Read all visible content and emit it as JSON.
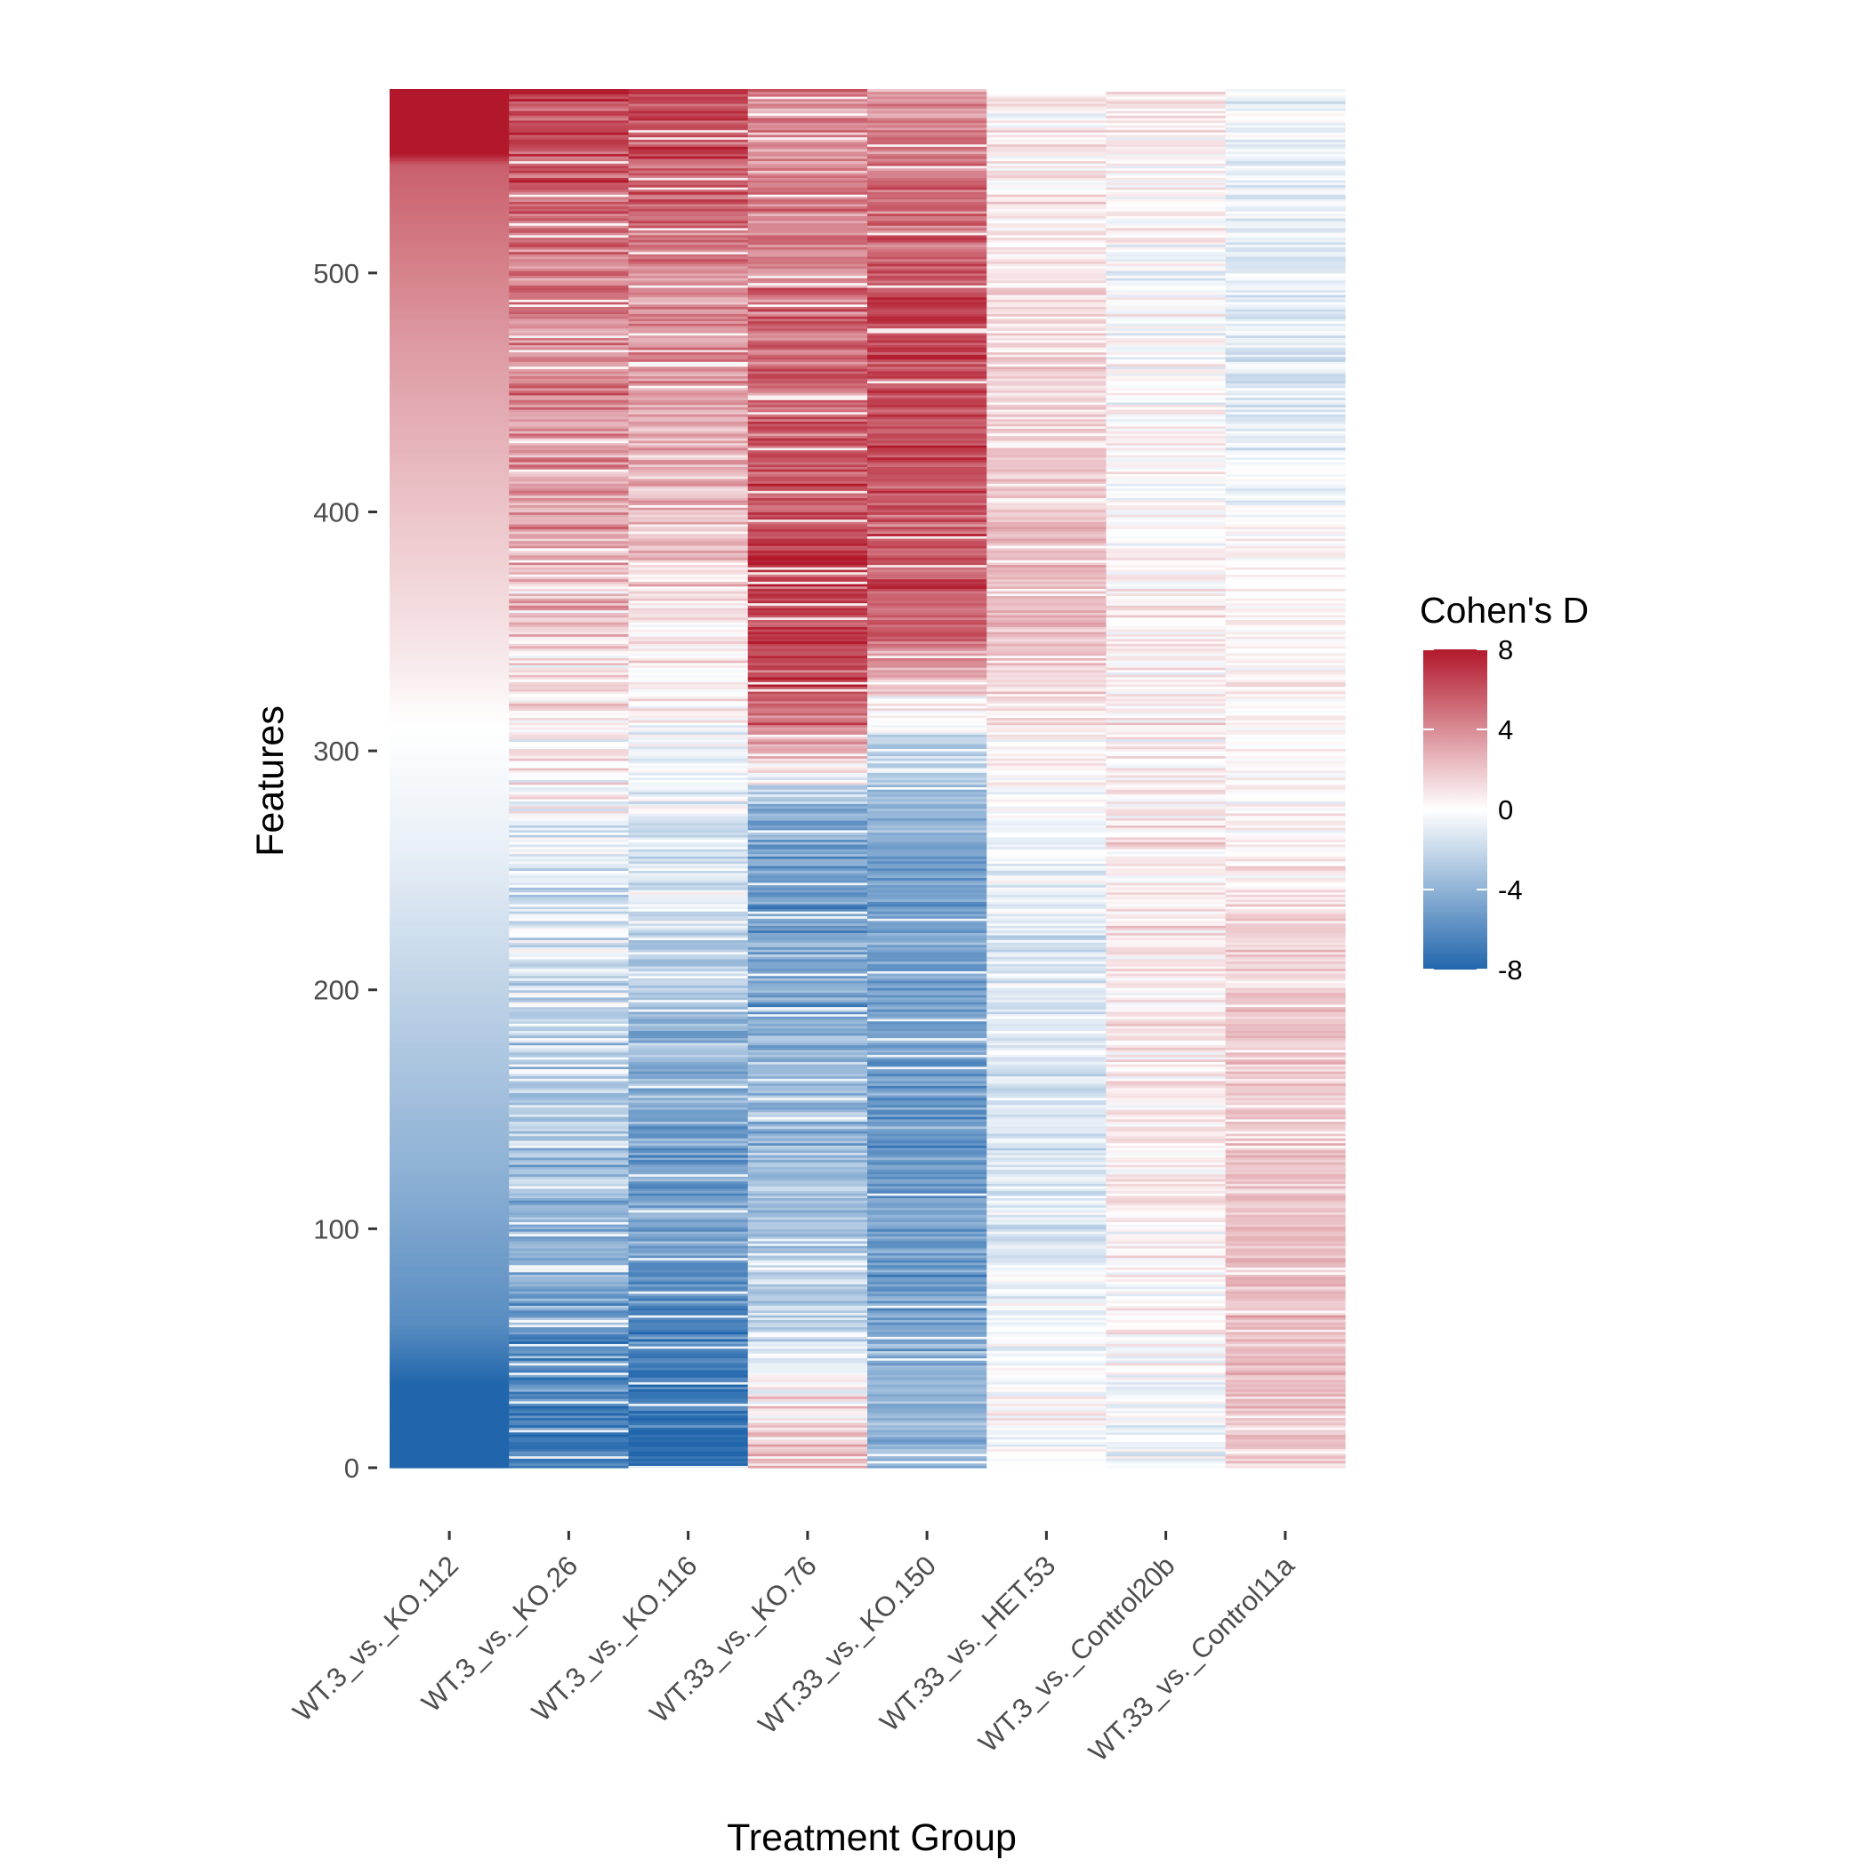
{
  "chart_data": {
    "type": "heatmap",
    "title": "",
    "xlabel": "Treatment Group",
    "ylabel": "Features",
    "categories": [
      "WT.3_vs._KO.112",
      "WT.3_vs._KO.26",
      "WT.3_vs._KO.116",
      "WT.33_vs._KO.76",
      "WT.33_vs._KO.150",
      "WT.33_vs._HET.53",
      "WT.3_vs._Control20b",
      "WT.33_vs._Control11a"
    ],
    "y_ticks": [
      0,
      100,
      200,
      300,
      400,
      500
    ],
    "y_tick_labels": [
      "0",
      "100",
      "200",
      "300",
      "400",
      "500"
    ],
    "ylim": [
      0,
      577
    ],
    "n_features": 577,
    "color_scale": {
      "title": "Cohen's D",
      "range": [
        -8,
        8
      ],
      "breaks": [
        8,
        4,
        0,
        -4,
        -8
      ],
      "break_labels": [
        "8",
        "4",
        "0",
        "-4",
        "-8"
      ],
      "low_color": "#2166ac",
      "mid_color": "#ffffff",
      "high_color": "#b2182b"
    },
    "column_profiles": [
      {
        "name": "WT.3_vs._KO.112",
        "profile": [
          [
            0,
            -8.0
          ],
          [
            35,
            -8.0
          ],
          [
            60,
            -6.0
          ],
          [
            120,
            -4.2
          ],
          [
            200,
            -2.3
          ],
          [
            260,
            -0.8
          ],
          [
            310,
            0.0
          ],
          [
            340,
            0.8
          ],
          [
            400,
            2.0
          ],
          [
            470,
            3.5
          ],
          [
            545,
            5.5
          ],
          [
            550,
            8.0
          ],
          [
            577,
            8.0
          ]
        ],
        "noise": 0.0,
        "seed": 11
      },
      {
        "name": "WT.3_vs._KO.26",
        "profile": [
          [
            0,
            -6.5
          ],
          [
            30,
            -6.5
          ],
          [
            70,
            -4.5
          ],
          [
            130,
            -3.2
          ],
          [
            200,
            -2.0
          ],
          [
            260,
            -0.8
          ],
          [
            310,
            0.8
          ],
          [
            400,
            3.0
          ],
          [
            480,
            4.0
          ],
          [
            550,
            6.0
          ],
          [
            577,
            6.5
          ]
        ],
        "noise": 1.6,
        "seed": 23
      },
      {
        "name": "WT.3_vs._KO.116",
        "profile": [
          [
            0,
            -7.5
          ],
          [
            60,
            -6.5
          ],
          [
            100,
            -5.0
          ],
          [
            180,
            -4.2
          ],
          [
            220,
            -2.0
          ],
          [
            300,
            -0.3
          ],
          [
            350,
            1.2
          ],
          [
            420,
            2.5
          ],
          [
            480,
            4.0
          ],
          [
            550,
            6.0
          ],
          [
            577,
            6.5
          ]
        ],
        "noise": 1.4,
        "seed": 37
      },
      {
        "name": "WT.33_vs._KO.76",
        "profile": [
          [
            0,
            2.0
          ],
          [
            30,
            1.0
          ],
          [
            60,
            -2.0
          ],
          [
            150,
            -4.0
          ],
          [
            250,
            -5.0
          ],
          [
            275,
            -4.5
          ],
          [
            300,
            3.0
          ],
          [
            330,
            6.5
          ],
          [
            350,
            6.5
          ],
          [
            400,
            6.0
          ],
          [
            440,
            5.5
          ],
          [
            500,
            4.5
          ],
          [
            577,
            4.0
          ]
        ],
        "noise": 1.5,
        "seed": 41
      },
      {
        "name": "WT.33_vs._KO.150",
        "profile": [
          [
            0,
            -3.0
          ],
          [
            65,
            -5.0
          ],
          [
            150,
            -5.2
          ],
          [
            240,
            -5.0
          ],
          [
            300,
            -2.5
          ],
          [
            330,
            2.0
          ],
          [
            350,
            5.5
          ],
          [
            440,
            6.0
          ],
          [
            480,
            6.5
          ],
          [
            577,
            4.0
          ]
        ],
        "noise": 1.3,
        "seed": 53
      },
      {
        "name": "WT.33_vs._HET.53",
        "profile": [
          [
            0,
            0.3
          ],
          [
            100,
            -1.0
          ],
          [
            200,
            -1.5
          ],
          [
            300,
            0.5
          ],
          [
            350,
            2.5
          ],
          [
            420,
            2.0
          ],
          [
            500,
            1.0
          ],
          [
            577,
            0.3
          ]
        ],
        "noise": 1.0,
        "seed": 67
      },
      {
        "name": "WT.3_vs._Control20b",
        "profile": [
          [
            0,
            -0.5
          ],
          [
            100,
            0.5
          ],
          [
            200,
            0.8
          ],
          [
            300,
            0.5
          ],
          [
            400,
            0.2
          ],
          [
            500,
            0.0
          ],
          [
            577,
            0.8
          ]
        ],
        "noise": 1.1,
        "seed": 79
      },
      {
        "name": "WT.33_vs._Control11a",
        "profile": [
          [
            0,
            2.2
          ],
          [
            100,
            2.0
          ],
          [
            200,
            1.8
          ],
          [
            280,
            0.0
          ],
          [
            350,
            0.5
          ],
          [
            450,
            -1.2
          ],
          [
            520,
            -1.0
          ],
          [
            577,
            -0.3
          ]
        ],
        "noise": 0.9,
        "seed": 97
      }
    ]
  }
}
